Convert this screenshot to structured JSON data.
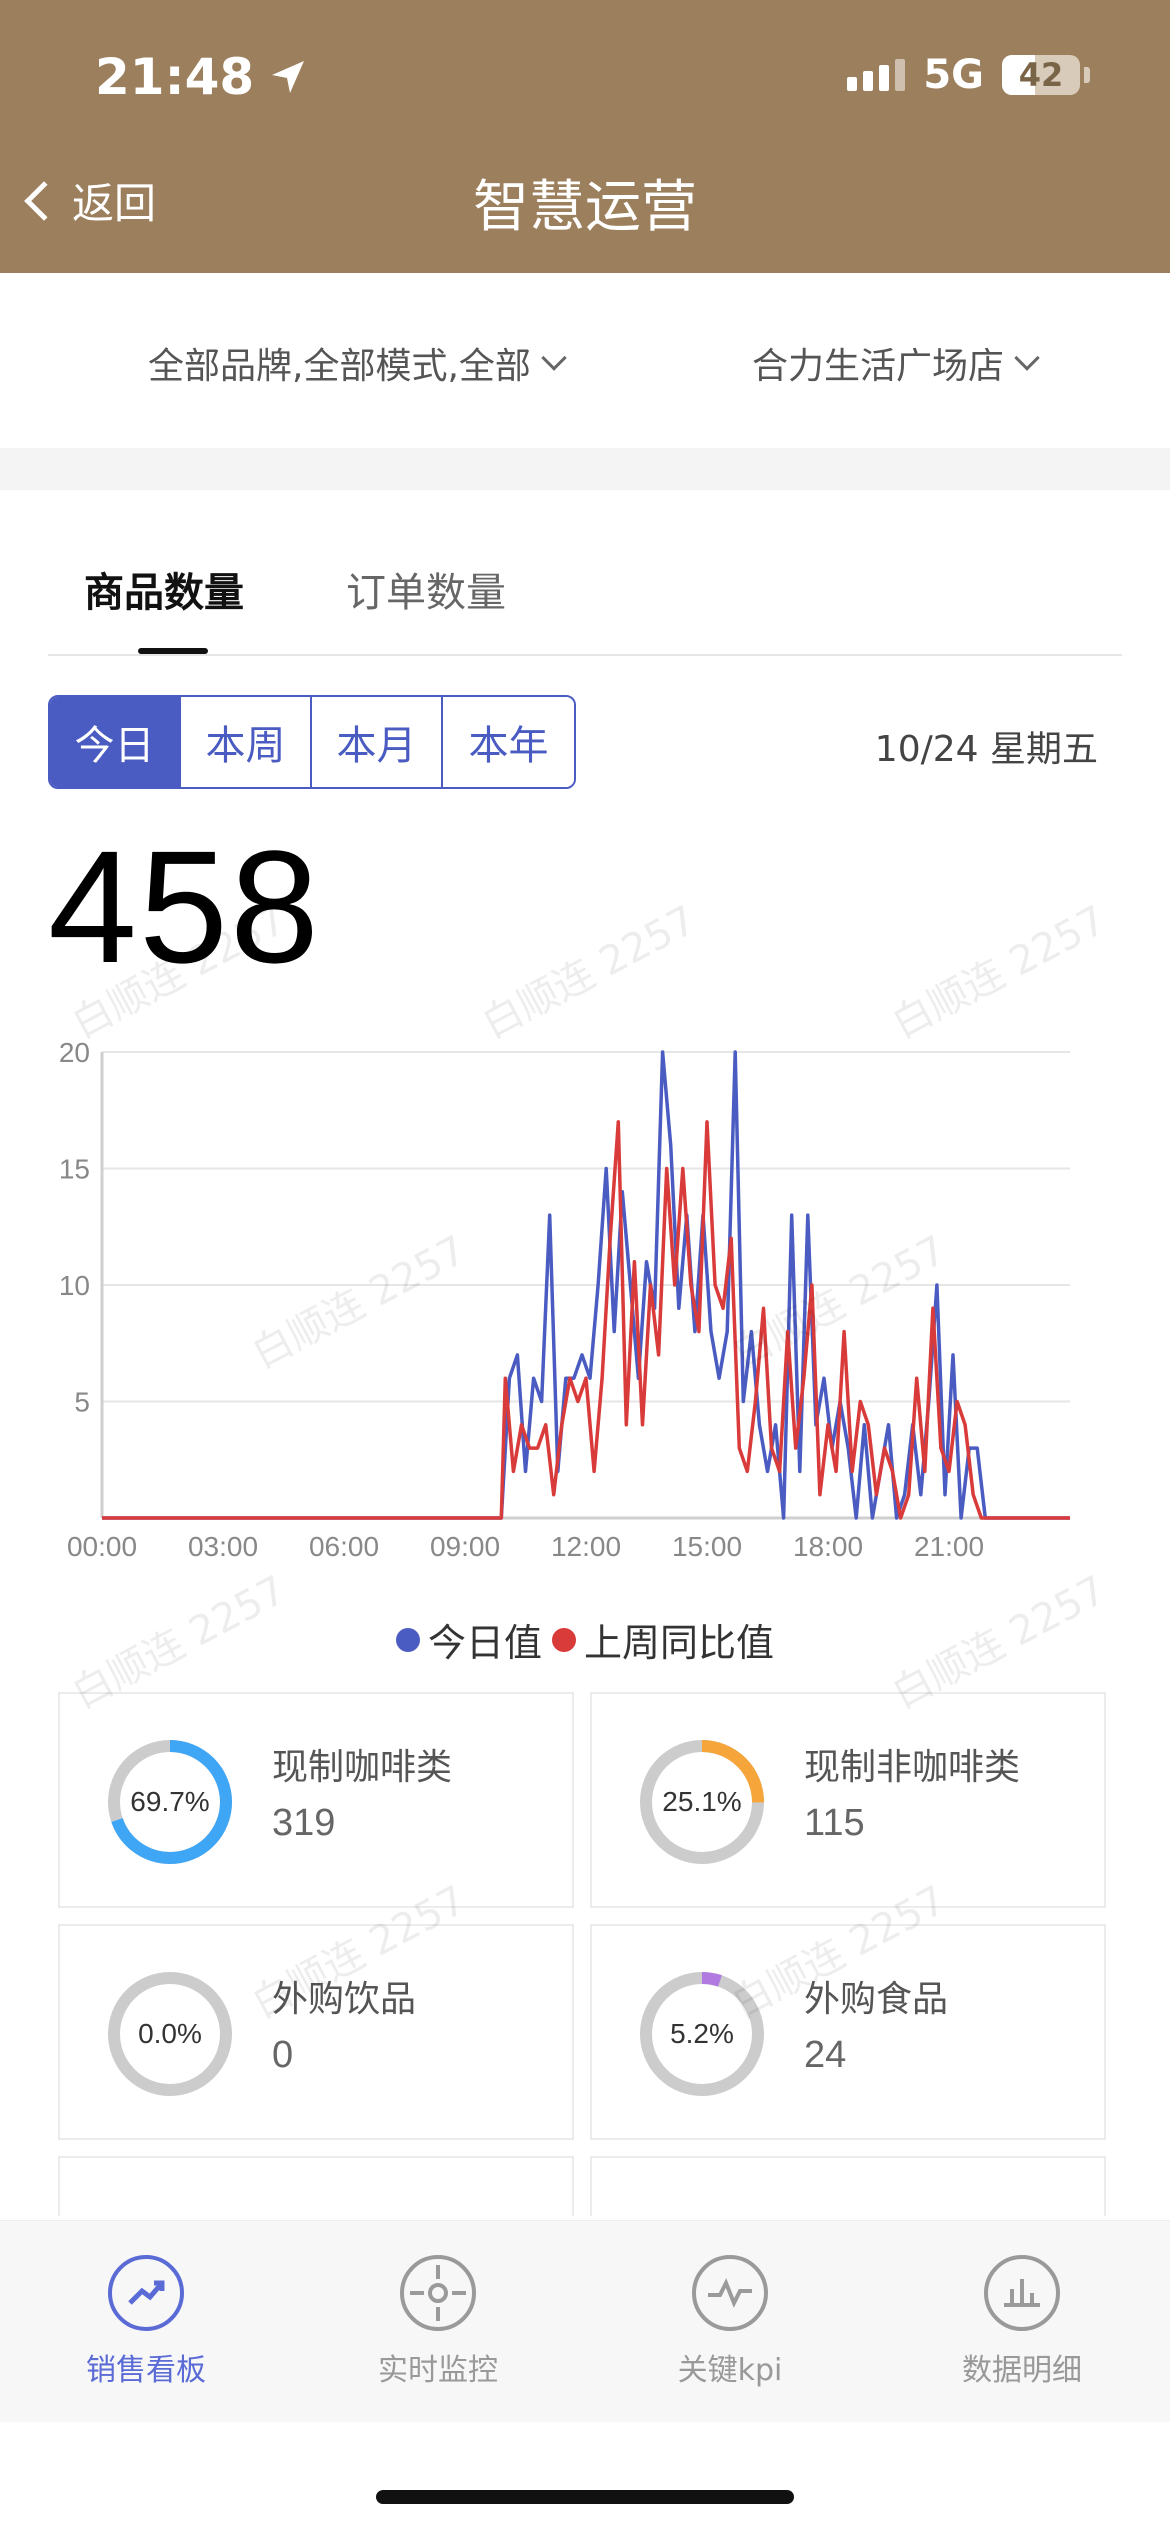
{
  "status_bar": {
    "time": "21:48",
    "network": "5G",
    "battery": "42"
  },
  "nav": {
    "back_label": "返回",
    "title": "智慧运营"
  },
  "filters": {
    "brand_mode": "全部品牌,全部模式,全部",
    "store": "合力生活广场店"
  },
  "tabs": [
    {
      "label": "商品数量",
      "active": true
    },
    {
      "label": "订单数量",
      "active": false
    }
  ],
  "period": {
    "options": [
      "今日",
      "本周",
      "本月",
      "本年"
    ],
    "selected": "今日",
    "date": "10/24 星期五"
  },
  "total": "458",
  "watermark": "白顺连 2257",
  "chart_data": {
    "type": "line",
    "y_ticks": [
      "20",
      "15",
      "10",
      "5"
    ],
    "ylim": [
      0,
      20
    ],
    "x_ticks": [
      "00:00",
      "03:00",
      "06:00",
      "09:00",
      "12:00",
      "15:00",
      "18:00",
      "21:00"
    ],
    "x_range_hours": [
      0,
      24
    ],
    "series": [
      {
        "name": "今日值",
        "color": "#4a5cc2",
        "points": [
          [
            0,
            0
          ],
          [
            9.9,
            0
          ],
          [
            10.1,
            6
          ],
          [
            10.3,
            7
          ],
          [
            10.5,
            2
          ],
          [
            10.7,
            6
          ],
          [
            10.9,
            5
          ],
          [
            11.1,
            13
          ],
          [
            11.3,
            2
          ],
          [
            11.5,
            6
          ],
          [
            11.7,
            6
          ],
          [
            11.9,
            7
          ],
          [
            12.1,
            6
          ],
          [
            12.3,
            10
          ],
          [
            12.5,
            15
          ],
          [
            12.7,
            8
          ],
          [
            12.9,
            14
          ],
          [
            13.1,
            10
          ],
          [
            13.3,
            6
          ],
          [
            13.5,
            11
          ],
          [
            13.7,
            9
          ],
          [
            13.9,
            20
          ],
          [
            14.1,
            16
          ],
          [
            14.3,
            9
          ],
          [
            14.5,
            13
          ],
          [
            14.7,
            8
          ],
          [
            14.9,
            13
          ],
          [
            15.1,
            8
          ],
          [
            15.3,
            6
          ],
          [
            15.5,
            8
          ],
          [
            15.7,
            20
          ],
          [
            15.9,
            5
          ],
          [
            16.1,
            8
          ],
          [
            16.3,
            4
          ],
          [
            16.5,
            2
          ],
          [
            16.7,
            4
          ],
          [
            16.9,
            0
          ],
          [
            17.1,
            13
          ],
          [
            17.3,
            2
          ],
          [
            17.5,
            13
          ],
          [
            17.7,
            4
          ],
          [
            17.9,
            6
          ],
          [
            18.1,
            3
          ],
          [
            18.3,
            5
          ],
          [
            18.5,
            3
          ],
          [
            18.7,
            0
          ],
          [
            18.9,
            4
          ],
          [
            19.1,
            0
          ],
          [
            19.3,
            2
          ],
          [
            19.5,
            4
          ],
          [
            19.7,
            0
          ],
          [
            19.9,
            1
          ],
          [
            20.1,
            4
          ],
          [
            20.3,
            1
          ],
          [
            20.5,
            5
          ],
          [
            20.7,
            10
          ],
          [
            20.9,
            1
          ],
          [
            21.1,
            7
          ],
          [
            21.3,
            0
          ],
          [
            21.5,
            3
          ],
          [
            21.7,
            3
          ],
          [
            21.9,
            0
          ],
          [
            24,
            0
          ]
        ]
      },
      {
        "name": "上周同比值",
        "color": "#d93a3a",
        "points": [
          [
            0,
            0
          ],
          [
            9.9,
            0
          ],
          [
            10.0,
            6
          ],
          [
            10.2,
            2
          ],
          [
            10.4,
            4
          ],
          [
            10.6,
            3
          ],
          [
            10.8,
            3
          ],
          [
            11.0,
            4
          ],
          [
            11.2,
            1
          ],
          [
            11.4,
            4
          ],
          [
            11.6,
            6
          ],
          [
            11.8,
            5
          ],
          [
            12.0,
            6
          ],
          [
            12.2,
            2
          ],
          [
            12.4,
            6
          ],
          [
            12.6,
            12
          ],
          [
            12.8,
            17
          ],
          [
            13.0,
            4
          ],
          [
            13.2,
            11
          ],
          [
            13.4,
            4
          ],
          [
            13.6,
            10
          ],
          [
            13.8,
            7
          ],
          [
            14.0,
            15
          ],
          [
            14.2,
            10
          ],
          [
            14.4,
            15
          ],
          [
            14.6,
            10
          ],
          [
            14.8,
            8
          ],
          [
            15.0,
            17
          ],
          [
            15.2,
            10
          ],
          [
            15.4,
            9
          ],
          [
            15.6,
            12
          ],
          [
            15.8,
            3
          ],
          [
            16.0,
            2
          ],
          [
            16.2,
            5
          ],
          [
            16.4,
            9
          ],
          [
            16.6,
            3
          ],
          [
            16.8,
            2
          ],
          [
            17.0,
            8
          ],
          [
            17.2,
            3
          ],
          [
            17.4,
            6
          ],
          [
            17.6,
            10
          ],
          [
            17.8,
            1
          ],
          [
            18.0,
            4
          ],
          [
            18.2,
            2
          ],
          [
            18.4,
            8
          ],
          [
            18.6,
            2
          ],
          [
            18.8,
            5
          ],
          [
            19.0,
            4
          ],
          [
            19.2,
            1
          ],
          [
            19.4,
            3
          ],
          [
            19.6,
            2
          ],
          [
            19.8,
            0
          ],
          [
            20.0,
            1
          ],
          [
            20.2,
            6
          ],
          [
            20.4,
            2
          ],
          [
            20.6,
            9
          ],
          [
            20.8,
            3
          ],
          [
            21.0,
            2
          ],
          [
            21.2,
            5
          ],
          [
            21.4,
            4
          ],
          [
            21.6,
            1
          ],
          [
            21.8,
            0
          ],
          [
            24,
            0
          ]
        ]
      }
    ]
  },
  "legend": {
    "today": "今日值",
    "last_week": "上周同比值"
  },
  "categories": [
    {
      "name": "现制咖啡类",
      "value": "319",
      "percent_label": "69.7%",
      "percent": 69.7,
      "color": "#3fa5f5"
    },
    {
      "name": "现制非咖啡类",
      "value": "115",
      "percent_label": "25.1%",
      "percent": 25.1,
      "color": "#f5a53a"
    },
    {
      "name": "外购饮品",
      "value": "0",
      "percent_label": "0.0%",
      "percent": 0.0,
      "color": "#cccccc"
    },
    {
      "name": "外购食品",
      "value": "24",
      "percent_label": "5.2%",
      "percent": 5.2,
      "color": "#b07ae0"
    }
  ],
  "bottom_nav": [
    {
      "label": "销售看板",
      "icon": "trend-icon",
      "active": true
    },
    {
      "label": "实时监控",
      "icon": "target-icon",
      "active": false
    },
    {
      "label": "关键kpi",
      "icon": "pulse-icon",
      "active": false
    },
    {
      "label": "数据明细",
      "icon": "bar-chart-icon",
      "active": false
    }
  ]
}
